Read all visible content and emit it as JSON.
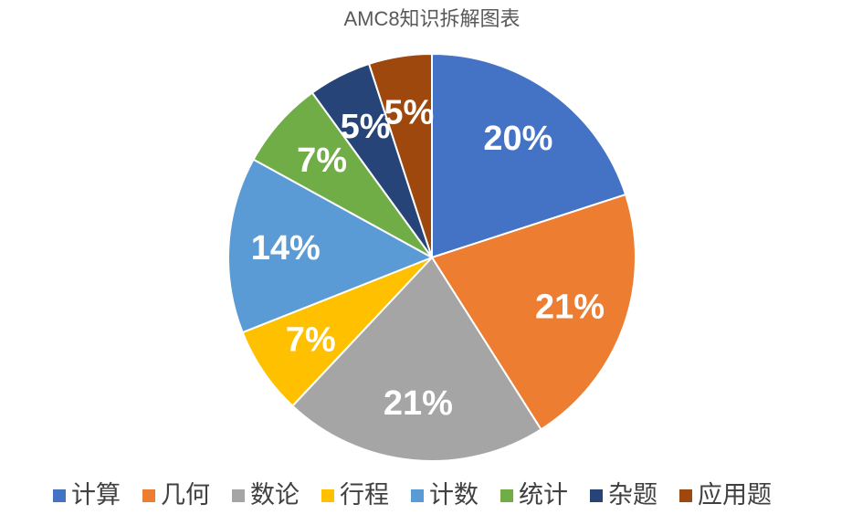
{
  "chart_data": {
    "type": "pie",
    "title": "AMC8知识拆解图表",
    "categories": [
      "计算",
      "几何",
      "数论",
      "行程",
      "计数",
      "统计",
      "杂题",
      "应用题"
    ],
    "values": [
      20,
      21,
      21,
      7,
      14,
      7,
      5,
      5
    ],
    "value_labels": [
      "20%",
      "21%",
      "21%",
      "7%",
      "14%",
      "7%",
      "5%",
      "5%"
    ],
    "colors": [
      "#4472c4",
      "#ed7d31",
      "#a5a5a5",
      "#ffc000",
      "#5b9bd5",
      "#70ad47",
      "#264478",
      "#9e480e"
    ],
    "legend": "bottom"
  }
}
